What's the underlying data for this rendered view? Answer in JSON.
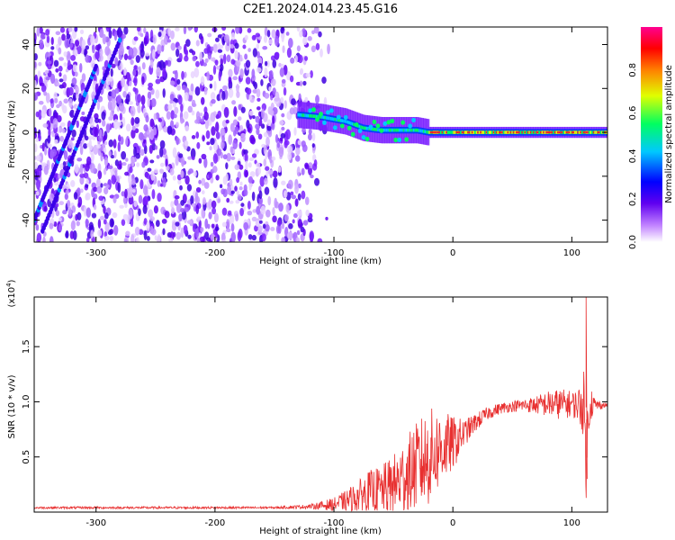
{
  "title": "C2E1.2024.014.23.45.G16",
  "chart_data": [
    {
      "type": "heatmap",
      "xlabel": "Height of straight line (km)",
      "ylabel": "Frequency (Hz)",
      "xlim": [
        -352,
        130
      ],
      "ylim": [
        -50,
        48
      ],
      "x_ticks": [
        -300,
        -200,
        -100,
        0,
        100
      ],
      "x_tick_labels": [
        "-300",
        "-200",
        "-100",
        "0",
        "100"
      ],
      "y_ticks": [
        -40,
        -20,
        0,
        20,
        40
      ],
      "y_tick_labels": [
        "-40",
        "-20",
        "0",
        "20",
        "40"
      ],
      "noise_region_x": [
        -352,
        -103
      ],
      "signal_band": {
        "x_start": -130,
        "center_points": [
          [
            -130,
            8
          ],
          [
            -110,
            7
          ],
          [
            -90,
            5
          ],
          [
            -75,
            2
          ],
          [
            -60,
            1
          ],
          [
            -45,
            1
          ],
          [
            -30,
            1
          ],
          [
            -20,
            0
          ],
          [
            0,
            0
          ],
          [
            50,
            0
          ],
          [
            100,
            0
          ],
          [
            130,
            0
          ]
        ],
        "half_width_hz": 2.5
      },
      "diagonal_traces": [
        {
          "x": [
            -352,
            -300
          ],
          "y": [
            -40,
            30
          ]
        },
        {
          "x": [
            -345,
            -280
          ],
          "y": [
            -45,
            42
          ]
        }
      ],
      "colorbar": {
        "label": "Normalized spectral amplitude",
        "range": [
          0,
          1
        ],
        "ticks": [
          0.0,
          0.2,
          0.4,
          0.6,
          0.8
        ],
        "tick_labels": [
          "0.0",
          "0.2",
          "0.4",
          "0.6",
          "0.8"
        ],
        "colors": [
          "#ffffff",
          "#c080ff",
          "#6000f0",
          "#0000ff",
          "#00c8ff",
          "#00ff60",
          "#e0ff00",
          "#ff8000",
          "#ff0000",
          "#ff0090"
        ]
      }
    },
    {
      "type": "line",
      "xlabel": "Height of straight line (km)",
      "ylabel": "SNR (10 * v/v)",
      "y_scale_label_base": "(x10",
      "y_scale_label_exp": "4",
      "y_scale_label_close": ")",
      "xlim": [
        -352,
        130
      ],
      "ylim": [
        0,
        1.95
      ],
      "x_ticks": [
        -300,
        -200,
        -100,
        0,
        100
      ],
      "x_tick_labels": [
        "-300",
        "-200",
        "-100",
        "0",
        "100"
      ],
      "y_ticks": [
        0.5,
        1.0,
        1.5
      ],
      "y_tick_labels": [
        "0.5",
        "1.0",
        "1.5"
      ],
      "line_color": "#e83030",
      "series": [
        {
          "x": [
            -352,
            -300,
            -250,
            -200,
            -150,
            -120,
            -100,
            -90,
            -80,
            -70,
            -60,
            -50,
            -40,
            -30,
            -20,
            -10,
            0,
            10,
            20,
            30,
            40,
            50,
            60,
            70,
            80,
            90,
            100,
            105,
            110,
            112,
            115,
            120,
            130
          ],
          "values": [
            0.04,
            0.04,
            0.04,
            0.04,
            0.04,
            0.05,
            0.07,
            0.1,
            0.14,
            0.18,
            0.2,
            0.24,
            0.32,
            0.42,
            0.5,
            0.58,
            0.62,
            0.72,
            0.82,
            0.9,
            0.94,
            0.96,
            0.97,
            0.97,
            0.98,
            0.98,
            0.98,
            0.97,
            0.98,
            0.5,
            1.0,
            0.97,
            0.97
          ],
          "spread": [
            0.01,
            0.01,
            0.01,
            0.01,
            0.01,
            0.02,
            0.06,
            0.1,
            0.14,
            0.2,
            0.22,
            0.28,
            0.36,
            0.4,
            0.45,
            0.35,
            0.25,
            0.12,
            0.08,
            0.06,
            0.05,
            0.05,
            0.06,
            0.08,
            0.12,
            0.14,
            0.12,
            0.14,
            0.3,
            0.4,
            0.2,
            0.05,
            0.02
          ]
        }
      ]
    }
  ]
}
